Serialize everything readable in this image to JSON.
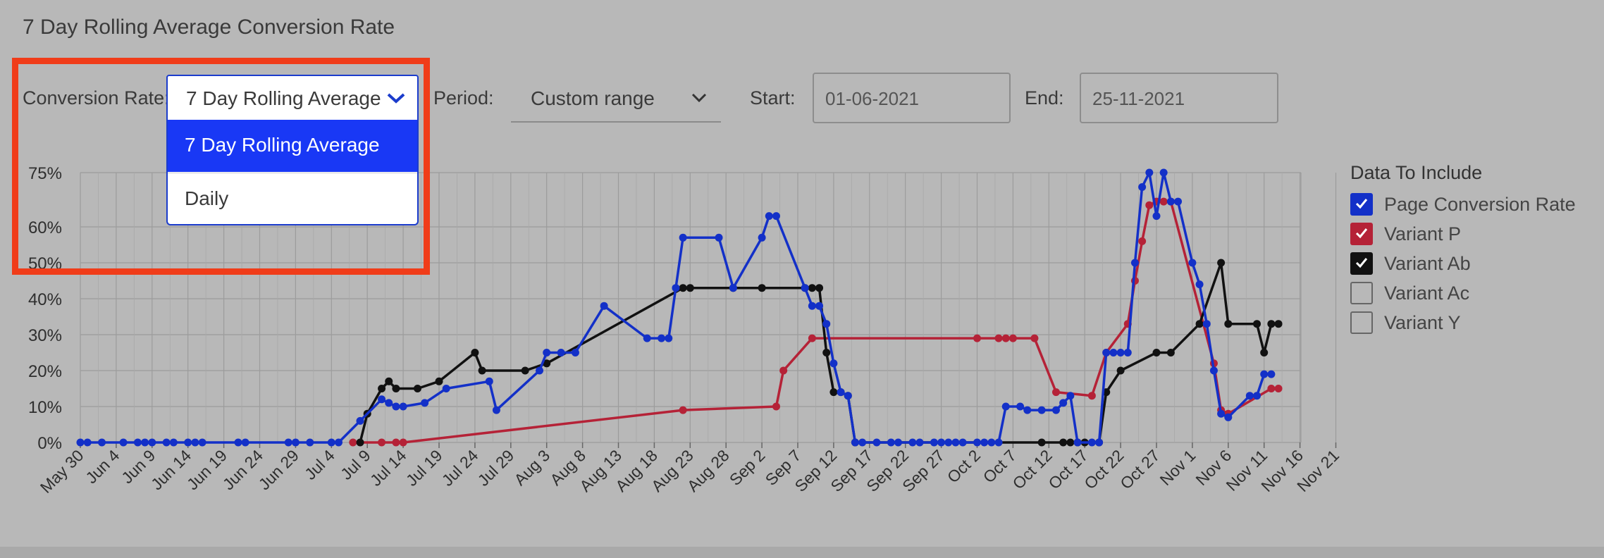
{
  "title": "7 Day Rolling Average Conversion Rate",
  "controls": {
    "conversion_rate_label": "Conversion Rate:",
    "conversion_rate_value": "7 Day Rolling Average",
    "conversion_rate_options": [
      "7 Day Rolling Average",
      "Daily"
    ],
    "period_label": "Period:",
    "period_value": "Custom range",
    "start_label": "Start:",
    "start_value": "01-06-2021",
    "end_label": "End:",
    "end_value": "25-11-2021"
  },
  "legend": {
    "title": "Data To Include",
    "items": [
      {
        "label": "Page Conversion Rate",
        "checked": true,
        "color": "#1330c8"
      },
      {
        "label": "Variant P",
        "checked": true,
        "color": "#b52237"
      },
      {
        "label": "Variant Ab",
        "checked": true,
        "color": "#111111"
      },
      {
        "label": "Variant Ac",
        "checked": false,
        "color": ""
      },
      {
        "label": "Variant Y",
        "checked": false,
        "color": ""
      }
    ]
  },
  "chart_data": {
    "type": "line",
    "x_start": "May 30",
    "x_end": "Nov 25",
    "yticks": [
      "0%",
      "10%",
      "20%",
      "30%",
      "40%",
      "50%",
      "60%",
      "75%"
    ],
    "ytick_values": [
      0,
      10,
      20,
      30,
      40,
      50,
      60,
      75
    ],
    "xtick_labels": [
      "May 30",
      "Jun 4",
      "Jun 9",
      "Jun 14",
      "Jun 19",
      "Jun 24",
      "Jun 29",
      "Jul 4",
      "Jul 9",
      "Jul 14",
      "Jul 19",
      "Jul 24",
      "Jul 29",
      "Aug 3",
      "Aug 8",
      "Aug 13",
      "Aug 18",
      "Aug 23",
      "Aug 28",
      "Sep 2",
      "Sep 7",
      "Sep 12",
      "Sep 17",
      "Sep 22",
      "Sep 27",
      "Oct 2",
      "Oct 7",
      "Oct 12",
      "Oct 17",
      "Oct 22",
      "Oct 27",
      "Nov 1",
      "Nov 6",
      "Nov 11",
      "Nov 16",
      "Nov 21"
    ],
    "grid": true,
    "series": [
      {
        "name": "Page Conversion Rate",
        "color": "#1330c8",
        "points": [
          [
            0,
            0
          ],
          [
            1,
            0
          ],
          [
            3,
            0
          ],
          [
            6,
            0
          ],
          [
            8,
            0
          ],
          [
            9,
            0
          ],
          [
            10,
            0
          ],
          [
            12,
            0
          ],
          [
            13,
            0
          ],
          [
            15,
            0
          ],
          [
            16,
            0
          ],
          [
            17,
            0
          ],
          [
            22,
            0
          ],
          [
            23,
            0
          ],
          [
            29,
            0
          ],
          [
            30,
            0
          ],
          [
            32,
            0
          ],
          [
            35,
            0
          ],
          [
            36,
            0
          ],
          [
            39,
            6
          ],
          [
            42,
            12
          ],
          [
            43,
            11
          ],
          [
            44,
            10
          ],
          [
            45,
            10
          ],
          [
            48,
            11
          ],
          [
            51,
            15
          ],
          [
            57,
            17
          ],
          [
            58,
            9
          ],
          [
            64,
            20
          ],
          [
            65,
            25
          ],
          [
            67,
            25
          ],
          [
            69,
            25
          ],
          [
            73,
            38
          ],
          [
            79,
            29
          ],
          [
            81,
            29
          ],
          [
            82,
            29
          ],
          [
            83,
            43
          ],
          [
            84,
            57
          ],
          [
            89,
            57
          ],
          [
            91,
            43
          ],
          [
            95,
            57
          ],
          [
            96,
            63
          ],
          [
            97,
            63
          ],
          [
            101,
            43
          ],
          [
            102,
            38
          ],
          [
            103,
            38
          ],
          [
            104,
            33
          ],
          [
            105,
            22
          ],
          [
            106,
            14
          ],
          [
            107,
            13
          ],
          [
            108,
            0
          ],
          [
            109,
            0
          ],
          [
            111,
            0
          ],
          [
            113,
            0
          ],
          [
            114,
            0
          ],
          [
            116,
            0
          ],
          [
            117,
            0
          ],
          [
            119,
            0
          ],
          [
            120,
            0
          ],
          [
            121,
            0
          ],
          [
            122,
            0
          ],
          [
            123,
            0
          ],
          [
            125,
            0
          ],
          [
            126,
            0
          ],
          [
            127,
            0
          ],
          [
            128,
            0
          ],
          [
            129,
            10
          ],
          [
            131,
            10
          ],
          [
            132,
            9
          ],
          [
            134,
            9
          ],
          [
            136,
            9
          ],
          [
            137,
            11
          ],
          [
            138,
            13
          ],
          [
            139,
            0
          ],
          [
            141,
            0
          ],
          [
            142,
            0
          ],
          [
            143,
            25
          ],
          [
            144,
            25
          ],
          [
            145,
            25
          ],
          [
            146,
            25
          ],
          [
            147,
            50
          ],
          [
            148,
            71
          ],
          [
            149,
            75
          ],
          [
            150,
            63
          ],
          [
            151,
            75
          ],
          [
            152,
            67
          ],
          [
            153,
            67
          ],
          [
            155,
            50
          ],
          [
            156,
            44
          ],
          [
            157,
            33
          ],
          [
            158,
            20
          ],
          [
            159,
            8
          ],
          [
            160,
            7
          ],
          [
            163,
            13
          ],
          [
            164,
            13
          ],
          [
            165,
            19
          ],
          [
            166,
            19
          ]
        ]
      },
      {
        "name": "Variant P",
        "color": "#b52237",
        "points": [
          [
            38,
            0
          ],
          [
            42,
            0
          ],
          [
            44,
            0
          ],
          [
            45,
            0
          ],
          [
            84,
            9
          ],
          [
            97,
            10
          ],
          [
            98,
            20
          ],
          [
            102,
            29
          ],
          [
            125,
            29
          ],
          [
            128,
            29
          ],
          [
            129,
            29
          ],
          [
            130,
            29
          ],
          [
            133,
            29
          ],
          [
            136,
            14
          ],
          [
            141,
            13
          ],
          [
            143,
            25
          ],
          [
            146,
            33
          ],
          [
            147,
            45
          ],
          [
            148,
            56
          ],
          [
            149,
            66
          ],
          [
            150,
            67
          ],
          [
            151,
            67
          ],
          [
            152,
            67
          ],
          [
            158,
            22
          ],
          [
            159,
            9
          ],
          [
            160,
            8
          ],
          [
            166,
            15
          ],
          [
            167,
            15
          ]
        ]
      },
      {
        "name": "Variant Ab",
        "color": "#111111",
        "points": [
          [
            39,
            0
          ],
          [
            40,
            8
          ],
          [
            42,
            15
          ],
          [
            43,
            17
          ],
          [
            44,
            15
          ],
          [
            47,
            15
          ],
          [
            50,
            17
          ],
          [
            55,
            25
          ],
          [
            56,
            20
          ],
          [
            62,
            20
          ],
          [
            65,
            22
          ],
          [
            84,
            43
          ],
          [
            85,
            43
          ],
          [
            91,
            43
          ],
          [
            95,
            43
          ],
          [
            101,
            43
          ],
          [
            102,
            43
          ],
          [
            103,
            43
          ],
          [
            104,
            25
          ],
          [
            105,
            14
          ],
          [
            106,
            14
          ],
          [
            107,
            13
          ],
          [
            108,
            0
          ],
          [
            134,
            0
          ],
          [
            137,
            0
          ],
          [
            138,
            0
          ],
          [
            139,
            0
          ],
          [
            140,
            0
          ],
          [
            142,
            0
          ],
          [
            143,
            14
          ],
          [
            145,
            20
          ],
          [
            150,
            25
          ],
          [
            152,
            25
          ],
          [
            156,
            33
          ],
          [
            159,
            50
          ],
          [
            160,
            33
          ],
          [
            164,
            33
          ],
          [
            165,
            25
          ],
          [
            166,
            33
          ],
          [
            167,
            33
          ]
        ]
      }
    ]
  }
}
